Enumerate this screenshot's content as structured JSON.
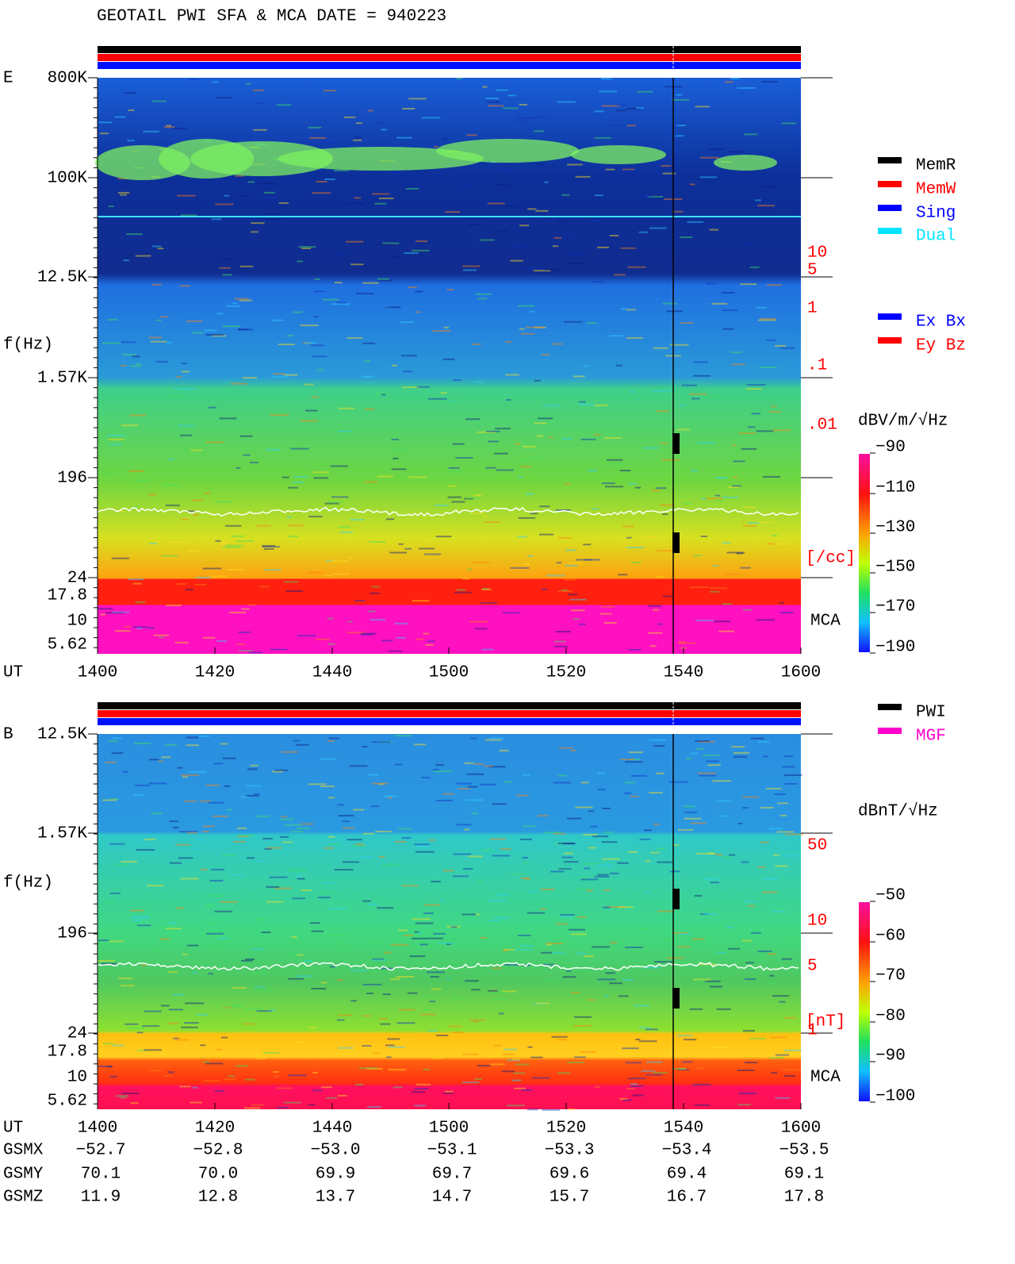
{
  "title": "GEOTAIL  PWI SFA & MCA  DATE = 940223",
  "ut_label": "UT",
  "ut_ticks": [
    "1400",
    "1420",
    "1440",
    "1500",
    "1520",
    "1540",
    "1600"
  ],
  "panels": [
    {
      "label": "E",
      "axis_label": "f(Hz)",
      "freq_ticks": [
        "800K",
        "100K",
        "12.5K",
        "1.57K",
        "196",
        "24",
        "17.8",
        "10",
        "5.62"
      ],
      "scale_ticks": [
        "10",
        "5",
        "1",
        ".1",
        ".01"
      ],
      "scale_unit": "[/cc]",
      "mca": "MCA",
      "legend": [
        {
          "name": "MemR",
          "color": "#000000"
        },
        {
          "name": "MemW",
          "color": "#ff0000"
        },
        {
          "name": "Sing",
          "color": "#0000ff"
        },
        {
          "name": "Dual",
          "color": "#00e5ff"
        },
        {
          "name": "Ex Bx",
          "color": "#0000ff"
        },
        {
          "name": "Ey Bz",
          "color": "#ff0000"
        }
      ],
      "unit": "dBV/m/√Hz",
      "colorbar_ticks": [
        "−90",
        "−110",
        "−130",
        "−150",
        "−170",
        "−190"
      ]
    },
    {
      "label": "B",
      "axis_label": "f(Hz)",
      "freq_ticks": [
        "12.5K",
        "1.57K",
        "196",
        "24",
        "17.8",
        "10",
        "5.62"
      ],
      "scale_ticks": [
        "50",
        "10",
        "5",
        "1"
      ],
      "scale_unit": "[nT]",
      "mca": "MCA",
      "legend": [
        {
          "name": "PWI",
          "color": "#000000"
        },
        {
          "name": "MGF",
          "color": "#ff00cc"
        }
      ],
      "unit": "dBnT/√Hz",
      "colorbar_ticks": [
        "−50",
        "−60",
        "−70",
        "−80",
        "−90",
        "−100"
      ]
    }
  ],
  "orbit": [
    {
      "name": "GSMX",
      "values": [
        "−52.7",
        "−52.8",
        "−53.0",
        "−53.1",
        "−53.3",
        "−53.4",
        "−53.5"
      ]
    },
    {
      "name": "GSMY",
      "values": [
        "70.1",
        "70.0",
        "69.9",
        "69.7",
        "69.6",
        "69.4",
        "69.1"
      ]
    },
    {
      "name": "GSMZ",
      "values": [
        "11.9",
        "12.8",
        "13.7",
        "14.7",
        "15.7",
        "16.7",
        "17.8"
      ]
    }
  ]
}
